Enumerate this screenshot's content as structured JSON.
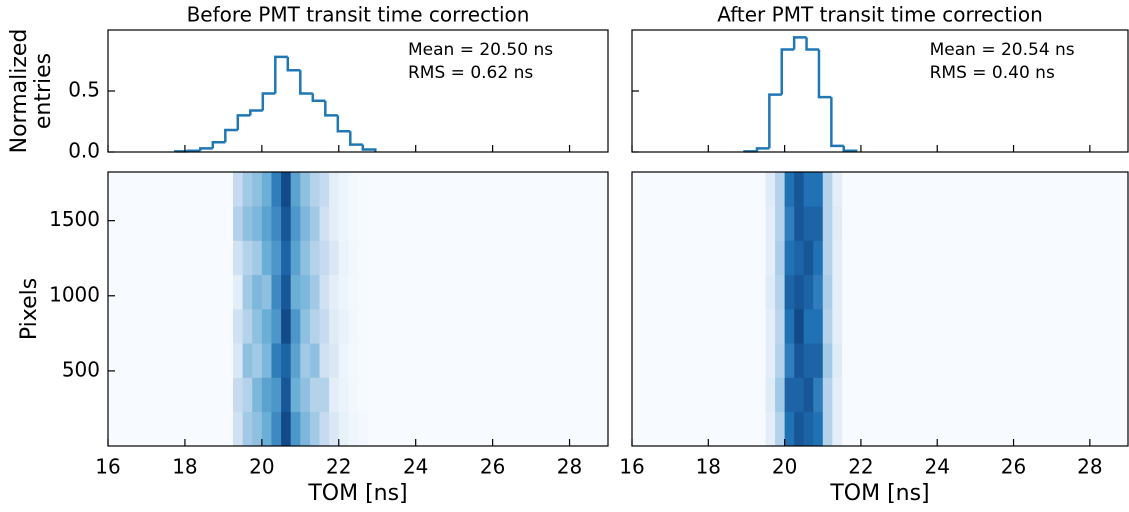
{
  "chart_data": [
    {
      "type": "histogram",
      "title": "Before PMT transit time correction",
      "ylabel": [
        "Normalized",
        "entries"
      ],
      "bins": [
        17.75,
        18.075,
        18.4,
        18.725,
        19.05,
        19.375,
        19.7,
        20.025,
        20.35,
        20.675,
        21.0,
        21.325,
        21.65,
        21.975,
        22.3,
        22.625,
        22.95
      ],
      "values": [
        0.005,
        0.01,
        0.03,
        0.08,
        0.18,
        0.3,
        0.34,
        0.48,
        0.78,
        0.67,
        0.48,
        0.42,
        0.3,
        0.17,
        0.06,
        0.02
      ],
      "color": "#1f77b4",
      "annotations": [
        "Mean = 20.50 ns",
        "RMS = 0.62 ns"
      ],
      "xlim": [
        16,
        29
      ],
      "xticks": [
        16,
        18,
        20,
        22,
        24,
        26,
        28
      ],
      "ylim": [
        0,
        1
      ],
      "yticks": [
        {
          "value": 0,
          "label": "0.0"
        },
        0.5
      ]
    },
    {
      "type": "heatmap",
      "xlabel": "TOM [ns]",
      "ylabel": "Pixels",
      "xbins": [
        19.25,
        19.5,
        19.75,
        20.0,
        20.25,
        20.5,
        20.75,
        21.0,
        21.25,
        21.5,
        21.75,
        22.0,
        22.25,
        22.5,
        22.75
      ],
      "ybins": [
        0,
        228,
        456,
        684,
        912,
        1140,
        1368,
        1596,
        1824
      ],
      "z": [
        [
          0.2,
          0.35,
          0.4,
          0.5,
          0.65,
          0.9,
          0.6,
          0.45,
          0.35,
          0.25,
          0.15,
          0.08,
          0.04,
          0.02
        ],
        [
          0.25,
          0.3,
          0.45,
          0.55,
          0.6,
          0.85,
          0.5,
          0.4,
          0.3,
          0.3,
          0.1,
          0.06,
          0.03,
          0.01
        ],
        [
          0.15,
          0.4,
          0.35,
          0.45,
          0.7,
          0.8,
          0.55,
          0.35,
          0.4,
          0.2,
          0.15,
          0.05,
          0.02,
          0.01
        ],
        [
          0.2,
          0.3,
          0.4,
          0.5,
          0.6,
          0.9,
          0.6,
          0.4,
          0.3,
          0.25,
          0.12,
          0.07,
          0.03,
          0.01
        ],
        [
          0.1,
          0.35,
          0.45,
          0.4,
          0.65,
          0.85,
          0.5,
          0.45,
          0.35,
          0.2,
          0.1,
          0.05,
          0.02,
          0.01
        ],
        [
          0.2,
          0.3,
          0.35,
          0.5,
          0.6,
          0.8,
          0.55,
          0.4,
          0.3,
          0.25,
          0.15,
          0.06,
          0.03,
          0.01
        ],
        [
          0.3,
          0.4,
          0.45,
          0.55,
          0.65,
          0.85,
          0.6,
          0.45,
          0.35,
          0.2,
          0.1,
          0.05,
          0.02,
          0.01
        ],
        [
          0.25,
          0.35,
          0.4,
          0.5,
          0.7,
          0.9,
          0.55,
          0.4,
          0.3,
          0.25,
          0.1,
          0.05,
          0.02,
          0.01
        ]
      ],
      "colormap": [
        "#f7fbff",
        "#c6dbef",
        "#6baed6",
        "#2171b5",
        "#08306b"
      ],
      "xlim": [
        16,
        29
      ],
      "xticks": [
        16,
        18,
        20,
        22,
        24,
        26,
        28
      ],
      "ylim": [
        0,
        1824
      ],
      "yticks": [
        500,
        1000,
        1500
      ]
    },
    {
      "type": "histogram",
      "title": "After PMT transit time correction",
      "bins": [
        18.95,
        19.275,
        19.6,
        19.925,
        20.25,
        20.575,
        20.9,
        21.225,
        21.55,
        21.875
      ],
      "values": [
        0.005,
        0.03,
        0.47,
        0.84,
        0.94,
        0.84,
        0.45,
        0.05,
        0.01
      ],
      "color": "#1f77b4",
      "annotations": [
        "Mean = 20.54 ns",
        "RMS = 0.40 ns"
      ],
      "xlim": [
        16,
        29
      ],
      "xticks": [
        16,
        18,
        20,
        22,
        24,
        26,
        28
      ],
      "ylim": [
        0,
        1
      ],
      "yticks": [
        0,
        0.5
      ]
    },
    {
      "type": "heatmap",
      "xlabel": "TOM [ns]",
      "xbins": [
        19.5,
        19.75,
        20.0,
        20.25,
        20.5,
        20.75,
        21.0,
        21.25,
        21.5
      ],
      "ybins": [
        0,
        228,
        456,
        684,
        912,
        1140,
        1368,
        1596,
        1824
      ],
      "z": [
        [
          0.1,
          0.3,
          0.75,
          0.85,
          0.8,
          0.75,
          0.3,
          0.1
        ],
        [
          0.12,
          0.35,
          0.8,
          0.8,
          0.85,
          0.7,
          0.3,
          0.1
        ],
        [
          0.1,
          0.3,
          0.7,
          0.85,
          0.8,
          0.8,
          0.35,
          0.12
        ],
        [
          0.1,
          0.28,
          0.75,
          0.9,
          0.75,
          0.75,
          0.3,
          0.1
        ],
        [
          0.12,
          0.3,
          0.8,
          0.85,
          0.8,
          0.7,
          0.32,
          0.1
        ],
        [
          0.1,
          0.32,
          0.75,
          0.8,
          0.85,
          0.75,
          0.3,
          0.1
        ],
        [
          0.1,
          0.3,
          0.7,
          0.85,
          0.8,
          0.8,
          0.3,
          0.12
        ],
        [
          0.12,
          0.3,
          0.75,
          0.85,
          0.75,
          0.75,
          0.3,
          0.1
        ]
      ],
      "colormap": [
        "#f7fbff",
        "#c6dbef",
        "#6baed6",
        "#2171b5",
        "#08306b"
      ],
      "xlim": [
        16,
        29
      ],
      "xticks": [
        16,
        18,
        20,
        22,
        24,
        26,
        28
      ],
      "ylim": [
        0,
        1824
      ]
    }
  ]
}
